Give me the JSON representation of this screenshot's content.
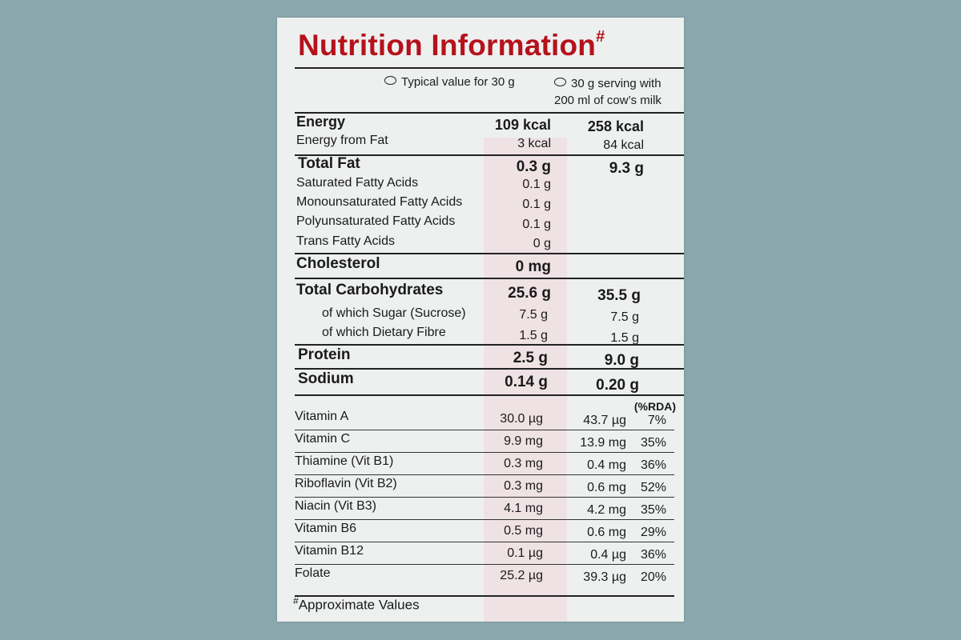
{
  "title": "Nutrition Information",
  "title_mark": "#",
  "colors": {
    "title": "#b5121b",
    "background": "#8aa7ad",
    "card": "#eef0f0"
  },
  "legend": {
    "col1": "Typical value for 30 g",
    "col2_line1": "30 g serving with",
    "col2_line2": "200 ml of cow’s milk"
  },
  "rows": {
    "energy": {
      "label": "Energy",
      "v1": "109 kcal",
      "v2": "258 kcal"
    },
    "energy_fat": {
      "label": "Energy from Fat",
      "v1": "3 kcal",
      "v2": "84 kcal"
    },
    "total_fat": {
      "label": "Total Fat",
      "v1": "0.3 g",
      "v2": "9.3 g"
    },
    "sat_fat": {
      "label": "Saturated Fatty Acids",
      "v1": "0.1 g"
    },
    "mono_fat": {
      "label": "Monounsaturated Fatty Acids",
      "v1": "0.1 g"
    },
    "poly_fat": {
      "label": "Polyunsaturated Fatty Acids",
      "v1": "0.1 g"
    },
    "trans_fat": {
      "label": "Trans Fatty Acids",
      "v1": "0 g"
    },
    "cholesterol": {
      "label": "Cholesterol",
      "v1": "0 mg"
    },
    "carbs": {
      "label": "Total Carbohydrates",
      "v1": "25.6 g",
      "v2": "35.5 g"
    },
    "sugar": {
      "label": "of which Sugar (Sucrose)",
      "v1": "7.5 g",
      "v2": "7.5 g"
    },
    "fibre": {
      "label": "of which Dietary Fibre",
      "v1": "1.5 g",
      "v2": "1.5 g"
    },
    "protein": {
      "label": "Protein",
      "v1": "2.5 g",
      "v2": "9.0 g"
    },
    "sodium": {
      "label": "Sodium",
      "v1": "0.14 g",
      "v2": "0.20 g"
    }
  },
  "rda_header": "(%RDA)",
  "vitamins": [
    {
      "label": "Vitamin A",
      "v1": "30.0 µg",
      "v2": "43.7 µg",
      "rda": "7%"
    },
    {
      "label": "Vitamin C",
      "v1": "9.9 mg",
      "v2": "13.9 mg",
      "rda": "35%"
    },
    {
      "label": "Thiamine (Vit B1)",
      "v1": "0.3 mg",
      "v2": "0.4 mg",
      "rda": "36%"
    },
    {
      "label": "Riboflavin (Vit B2)",
      "v1": "0.3 mg",
      "v2": "0.6 mg",
      "rda": "52%"
    },
    {
      "label": "Niacin (Vit B3)",
      "v1": "4.1 mg",
      "v2": "4.2 mg",
      "rda": "35%"
    },
    {
      "label": "Vitamin B6",
      "v1": "0.5 mg",
      "v2": "0.6 mg",
      "rda": "29%"
    },
    {
      "label": "Vitamin B12",
      "v1": "0.1 µg",
      "v2": "0.4 µg",
      "rda": "36%"
    },
    {
      "label": "Folate",
      "v1": "25.2 µg",
      "v2": "39.3 µg",
      "rda": "20%"
    }
  ],
  "footnote_mark": "#",
  "footnote": "Approximate Values"
}
